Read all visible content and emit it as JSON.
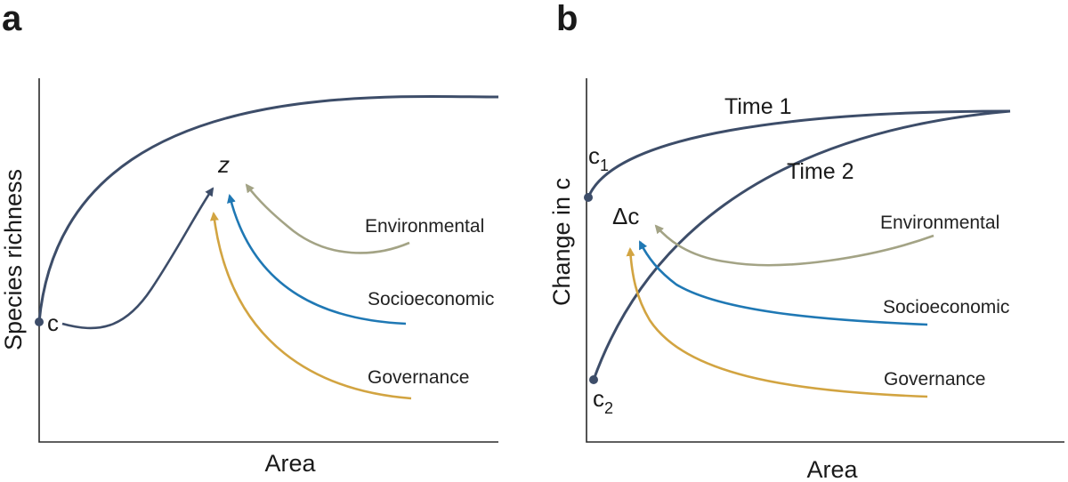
{
  "colors": {
    "main": "#3d4d69",
    "environmental": "#a3a385",
    "socioeconomic": "#1f78b4",
    "governance": "#d2a441"
  },
  "panel_a": {
    "letter": "a",
    "y_axis_title": "Species richness",
    "x_axis_title": "Area",
    "intercept_label": "c",
    "exponent_label": "z",
    "drivers": [
      "Environmental",
      "Socioeconomic",
      "Governance"
    ]
  },
  "panel_b": {
    "letter": "b",
    "y_axis_title": "Change in c",
    "x_axis_title": "Area",
    "time1_label": "Time 1",
    "time2_label": "Time 2",
    "c1_label": "c",
    "c1_sub": "1",
    "c2_label": "c",
    "c2_sub": "2",
    "delta_label": "Δc",
    "drivers": [
      "Environmental",
      "Socioeconomic",
      "Governance"
    ]
  }
}
